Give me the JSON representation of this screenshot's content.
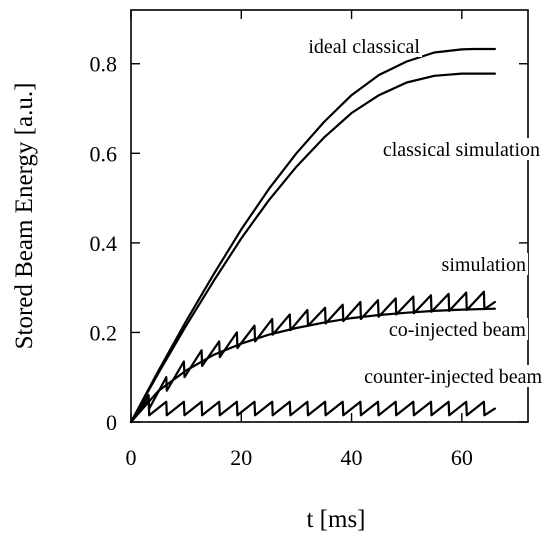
{
  "chart_data": {
    "type": "line",
    "title": "",
    "xlabel": "t [ms]",
    "ylabel": "Stored Beam Energy [a.u.]",
    "xlim": [
      0,
      72
    ],
    "ylim": [
      0,
      0.92
    ],
    "x_ticks": [
      0,
      20,
      40,
      60
    ],
    "x_tick_labels": [
      "0",
      "20",
      "40",
      "60"
    ],
    "y_ticks": [
      0,
      0.2,
      0.4,
      0.6,
      0.8
    ],
    "y_tick_labels": [
      "0",
      "0.2",
      "0.4",
      "0.6",
      "0.8"
    ],
    "grid": false,
    "legend": "none",
    "series": [
      {
        "name": "ideal classical",
        "x": [
          0,
          5,
          10,
          15,
          20,
          25,
          30,
          35,
          40,
          45,
          50,
          55,
          60,
          62,
          66
        ],
        "y": [
          0,
          0.115,
          0.225,
          0.33,
          0.43,
          0.52,
          0.6,
          0.67,
          0.73,
          0.775,
          0.805,
          0.825,
          0.832,
          0.833,
          0.833
        ]
      },
      {
        "name": "classical simulation",
        "x": [
          0,
          5,
          10,
          15,
          20,
          25,
          30,
          35,
          40,
          45,
          50,
          55,
          60,
          62,
          66
        ],
        "y": [
          0,
          0.11,
          0.215,
          0.315,
          0.41,
          0.495,
          0.57,
          0.635,
          0.69,
          0.73,
          0.758,
          0.773,
          0.778,
          0.778,
          0.778
        ]
      },
      {
        "name": "simulation",
        "x": [
          0,
          3.2,
          3.3,
          6.4,
          6.5,
          9.6,
          9.7,
          12.8,
          12.9,
          16.0,
          16.1,
          19.2,
          19.3,
          22.4,
          22.5,
          25.6,
          25.7,
          28.8,
          28.9,
          32.0,
          32.1,
          35.2,
          35.3,
          38.4,
          38.5,
          41.6,
          41.7,
          44.8,
          44.9,
          48.0,
          48.1,
          51.2,
          51.3,
          54.4,
          54.5,
          57.6,
          57.7,
          60.8,
          60.9,
          64.0,
          64.1,
          66.0
        ],
        "y": [
          0,
          0.06,
          0.03,
          0.1,
          0.07,
          0.135,
          0.1,
          0.16,
          0.125,
          0.18,
          0.145,
          0.2,
          0.165,
          0.215,
          0.18,
          0.23,
          0.195,
          0.24,
          0.205,
          0.25,
          0.215,
          0.255,
          0.22,
          0.262,
          0.225,
          0.268,
          0.23,
          0.272,
          0.235,
          0.276,
          0.24,
          0.28,
          0.243,
          0.283,
          0.246,
          0.286,
          0.248,
          0.289,
          0.25,
          0.291,
          0.252,
          0.268
        ]
      },
      {
        "name": "co-injected beam",
        "x": [
          0,
          5,
          10,
          15,
          20,
          25,
          30,
          35,
          40,
          45,
          50,
          55,
          60,
          66
        ],
        "y": [
          0,
          0.07,
          0.115,
          0.15,
          0.175,
          0.195,
          0.21,
          0.222,
          0.232,
          0.239,
          0.244,
          0.248,
          0.251,
          0.253
        ]
      },
      {
        "name": "counter-injected beam",
        "x": [
          0,
          3.2,
          3.3,
          6.4,
          6.5,
          9.6,
          9.7,
          12.8,
          12.9,
          16.0,
          16.1,
          19.2,
          19.3,
          22.4,
          22.5,
          25.6,
          25.7,
          28.8,
          28.9,
          32.0,
          32.1,
          35.2,
          35.3,
          38.4,
          38.5,
          41.6,
          41.7,
          44.8,
          44.9,
          48.0,
          48.1,
          51.2,
          51.3,
          54.4,
          54.5,
          57.6,
          57.7,
          60.8,
          60.9,
          64.0,
          64.1,
          66.0
        ],
        "y": [
          0,
          0.05,
          0.015,
          0.045,
          0.015,
          0.045,
          0.015,
          0.045,
          0.015,
          0.045,
          0.015,
          0.045,
          0.015,
          0.045,
          0.015,
          0.045,
          0.015,
          0.045,
          0.015,
          0.045,
          0.015,
          0.045,
          0.015,
          0.045,
          0.015,
          0.045,
          0.015,
          0.045,
          0.015,
          0.045,
          0.015,
          0.045,
          0.015,
          0.045,
          0.015,
          0.045,
          0.015,
          0.045,
          0.015,
          0.045,
          0.015,
          0.03
        ]
      }
    ]
  }
}
